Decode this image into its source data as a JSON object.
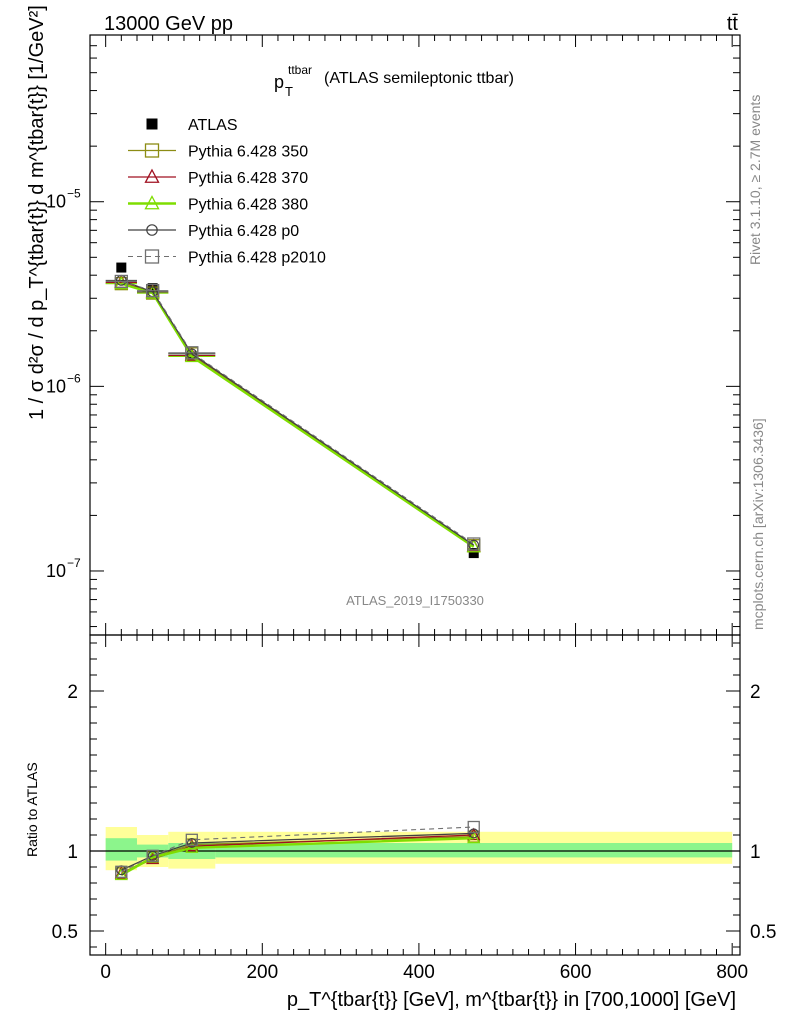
{
  "header": {
    "left": "13000 GeV pp",
    "right": "tt̄"
  },
  "title": {
    "main": "p",
    "sub": "T",
    "sup": "ttbar",
    "rest": "(ATLAS semileptonic ttbar)"
  },
  "side_labels": {
    "rivet": "Rivet 3.1.10, ≥ 2.7M events",
    "mcplots": "mcplots.cern.ch [arXiv:1306.3436]"
  },
  "watermark": "ATLAS_2019_I1750330",
  "ylabel_main": "1 / σ d²σ / d p_T^{tbar{t}} d m^{tbar{t}} [1/GeV²]",
  "ylabel_ratio": "Ratio to ATLAS",
  "xlabel": "p_T^{tbar{t}} [GeV], m^{tbar{t}} in [700,1000] [GeV]",
  "colors": {
    "atlas": "#000000",
    "p350": "#8c8c14",
    "p370": "#a01020",
    "p380": "#7fdd00",
    "p0": "#404040",
    "p2010": "#707070",
    "band_inner": "#8cf58c",
    "band_outer": "#ffff99"
  },
  "chart_data": [
    {
      "type": "scatter",
      "name": "main",
      "yscale": "log",
      "xlim": [
        -20,
        810
      ],
      "ylim": [
        4.5e-08,
        8e-05
      ],
      "yticks_major": [
        "10^-7",
        "10^-6",
        "10^-5"
      ],
      "xticks": [
        0,
        200,
        400,
        600,
        800
      ],
      "legend_position": "top-left",
      "x": [
        20,
        60,
        110,
        470
      ],
      "x_edges": [
        [
          0,
          40
        ],
        [
          40,
          80
        ],
        [
          80,
          140
        ],
        [
          140,
          800
        ]
      ],
      "series": [
        {
          "name": "ATLAS",
          "key": "atlas",
          "marker": "filled-square",
          "values": [
            4.4e-06,
            3.4e-06,
            1.45e-06,
            1.25e-07
          ]
        },
        {
          "name": "Pythia 6.428 350",
          "key": "p350",
          "marker": "open-square",
          "values": [
            3.6e-06,
            3.2e-06,
            1.5e-06,
            1.37e-07
          ]
        },
        {
          "name": "Pythia 6.428 370",
          "key": "p370",
          "marker": "open-triangle",
          "values": [
            3.65e-06,
            3.25e-06,
            1.47e-06,
            1.36e-07
          ]
        },
        {
          "name": "Pythia 6.428 380",
          "key": "p380",
          "marker": "open-triangle",
          "values": [
            3.6e-06,
            3.2e-06,
            1.45e-06,
            1.35e-07
          ]
        },
        {
          "name": "Pythia 6.428 p0",
          "key": "p0",
          "marker": "open-circle",
          "values": [
            3.75e-06,
            3.25e-06,
            1.5e-06,
            1.38e-07
          ]
        },
        {
          "name": "Pythia 6.428 p2010",
          "key": "p2010",
          "marker": "open-square-dashed",
          "values": [
            3.7e-06,
            3.3e-06,
            1.52e-06,
            1.4e-07
          ]
        }
      ]
    },
    {
      "type": "scatter",
      "name": "ratio",
      "ylabel": "Ratio to ATLAS",
      "ylim": [
        0.35,
        2.35
      ],
      "yticks": [
        0.5,
        1,
        2
      ],
      "xlim": [
        -20,
        810
      ],
      "x": [
        20,
        60,
        110,
        470
      ],
      "bands": {
        "x_edges": [
          [
            0,
            40
          ],
          [
            40,
            80
          ],
          [
            80,
            140
          ],
          [
            140,
            800
          ]
        ],
        "inner": [
          [
            0.94,
            1.08
          ],
          [
            0.96,
            1.04
          ],
          [
            0.95,
            1.05
          ],
          [
            0.96,
            1.05
          ]
        ],
        "outer": [
          [
            0.88,
            1.15
          ],
          [
            0.9,
            1.1
          ],
          [
            0.89,
            1.12
          ],
          [
            0.92,
            1.12
          ]
        ]
      },
      "series": [
        {
          "name": "Pythia 6.428 350",
          "key": "p350",
          "values": [
            0.86,
            0.96,
            1.04,
            1.09
          ]
        },
        {
          "name": "Pythia 6.428 370",
          "key": "p370",
          "values": [
            0.86,
            0.95,
            1.03,
            1.1
          ]
        },
        {
          "name": "Pythia 6.428 380",
          "key": "p380",
          "values": [
            0.85,
            0.96,
            1.02,
            1.08
          ]
        },
        {
          "name": "Pythia 6.428 p0",
          "key": "p0",
          "values": [
            0.88,
            0.97,
            1.05,
            1.11
          ]
        },
        {
          "name": "Pythia 6.428 p2010",
          "key": "p2010",
          "values": [
            0.87,
            0.97,
            1.07,
            1.15
          ]
        }
      ]
    }
  ]
}
